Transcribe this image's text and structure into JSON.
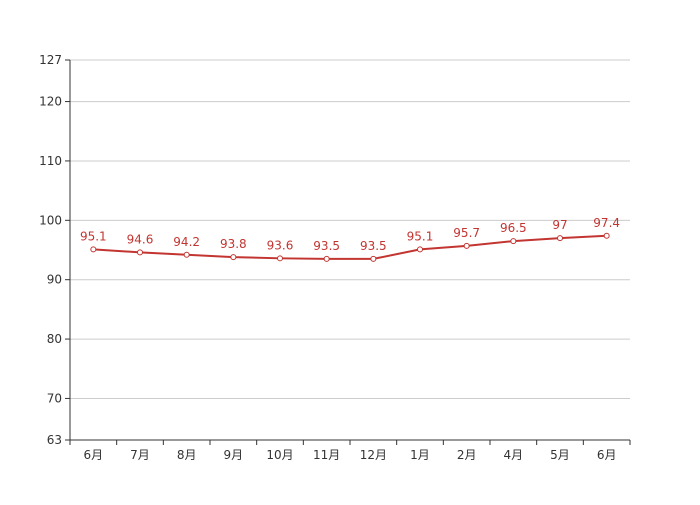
{
  "chart_data": {
    "type": "line",
    "categories": [
      "6月",
      "7月",
      "8月",
      "9月",
      "10月",
      "11月",
      "12月",
      "1月",
      "2月",
      "4月",
      "5月",
      "6月"
    ],
    "series": [
      {
        "values": [
          95.1,
          94.6,
          94.2,
          93.8,
          93.6,
          93.5,
          93.5,
          95.1,
          95.7,
          96.5,
          97,
          97.4
        ],
        "data_labels": [
          "95.1",
          "94.6",
          "94.2",
          "93.8",
          "93.6",
          "93.5",
          "93.5",
          "95.1",
          "95.7",
          "96.5",
          "97",
          "97.4"
        ]
      }
    ],
    "y_ticks": [
      63,
      70,
      80,
      90,
      100,
      110,
      120,
      127
    ],
    "y_tick_labels": [
      "63",
      "70",
      "80",
      "90",
      "100",
      "110",
      "120",
      "127"
    ],
    "ylim": [
      63,
      127
    ],
    "grid": true,
    "legend": "none",
    "colors": {
      "line": "#c23531",
      "grid": "#cccccc",
      "axis": "#333333",
      "marker_fill": "#ffffff"
    }
  }
}
